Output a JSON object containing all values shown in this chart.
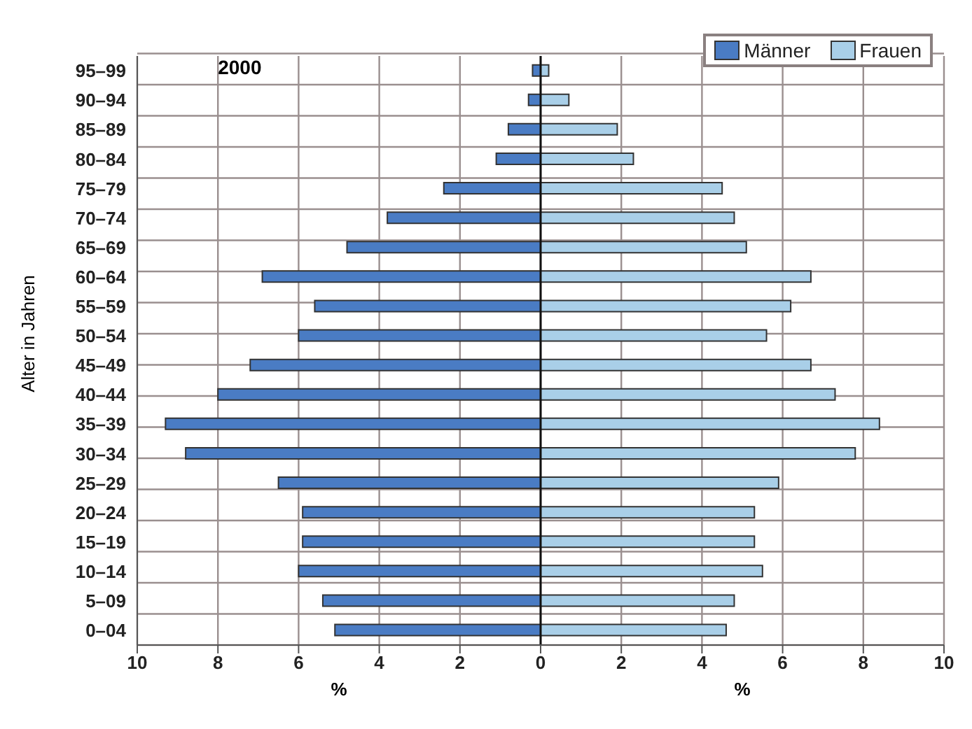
{
  "chart_data": {
    "type": "bar",
    "orientation": "horizontal",
    "stacked": true,
    "title": "2000",
    "xlabel": "%",
    "ylabel": "Alter in Jahren",
    "categories": [
      "95–99",
      "90–94",
      "85–89",
      "80–84",
      "75–79",
      "70–74",
      "65–69",
      "60–64",
      "55–59",
      "50–54",
      "45–49",
      "40–44",
      "35–39",
      "30–34",
      "25–29",
      "20–24",
      "15–19",
      "10–14",
      "5–09",
      "0–04"
    ],
    "series": [
      {
        "name": "Männer",
        "color": "#4a7cc4",
        "values": [
          -0.2,
          -0.3,
          -0.8,
          -1.1,
          -2.4,
          -3.8,
          -4.8,
          -6.9,
          -5.6,
          -6.0,
          -7.2,
          -8.0,
          -9.3,
          -8.8,
          -6.5,
          -5.9,
          -5.9,
          -6.0,
          -5.4,
          -5.1
        ]
      },
      {
        "name": "Frauen",
        "color": "#a9cfe8",
        "values": [
          0.2,
          0.7,
          1.9,
          2.3,
          4.5,
          4.8,
          5.1,
          6.7,
          6.2,
          5.6,
          6.7,
          7.3,
          8.4,
          7.8,
          5.9,
          5.3,
          5.3,
          5.5,
          4.8,
          4.6
        ]
      }
    ],
    "xlim": [
      -10,
      10
    ],
    "xticks": [
      {
        "value": -10,
        "label": "10"
      },
      {
        "value": -8,
        "label": "8"
      },
      {
        "value": -6,
        "label": "6"
      },
      {
        "value": -4,
        "label": "4"
      },
      {
        "value": -2,
        "label": "2"
      },
      0,
      2,
      4,
      6,
      8,
      10
    ],
    "grid": true,
    "legend": "top right"
  }
}
